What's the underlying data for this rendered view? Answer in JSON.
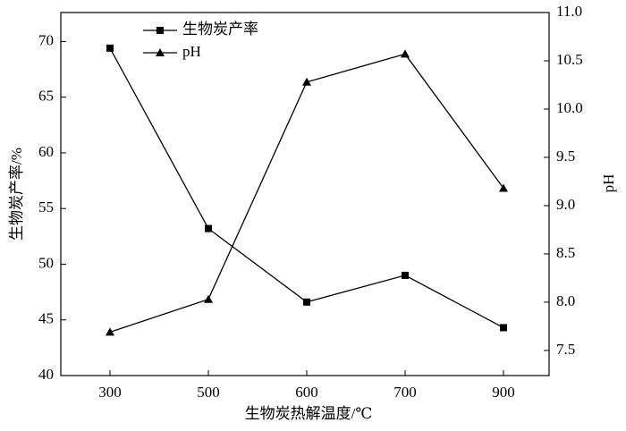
{
  "chart_data": {
    "type": "line",
    "x_label": "生物炭热解温度/℃",
    "y_label": "生物炭产率/%",
    "y2_label": "pH",
    "categories": [
      "300",
      "500",
      "600",
      "700",
      "900"
    ],
    "series": [
      {
        "name": "生物炭产率",
        "color": "#000000",
        "marker": "square",
        "values": [
          69.4,
          53.2,
          46.6,
          49.0,
          44.3
        ]
      },
      {
        "name": "pH",
        "color": "#000000",
        "marker": "triangle",
        "axis": "y2",
        "values": [
          7.69,
          8.03,
          10.28,
          10.57,
          9.18
        ]
      }
    ],
    "ylim": [
      40,
      72.6
    ],
    "yticks": [
      40,
      45,
      50,
      55,
      60,
      65,
      70
    ],
    "y2lim": [
      7.24,
      11.0
    ],
    "y2ticks": [
      7.5,
      {
        "value": 8,
        "label": "8.0"
      },
      8.5,
      {
        "value": 9,
        "label": "9.0"
      },
      9.5,
      {
        "value": 10,
        "label": "10.0"
      },
      10.5,
      {
        "value": 11,
        "label": "11.0"
      }
    ],
    "legend": "upper-left"
  }
}
